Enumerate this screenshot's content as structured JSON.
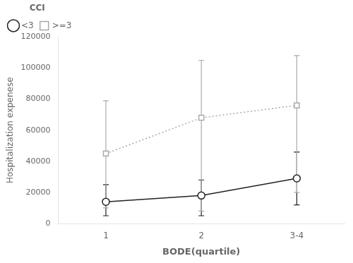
{
  "chart_data": {
    "type": "line",
    "xlabel": "BODE(quartile)",
    "ylabel": "Hospitalization expenese",
    "categories": [
      "1",
      "2",
      "3-4"
    ],
    "series": [
      {
        "name": "<3",
        "color": "#222222",
        "marker": "circle",
        "line_style": "solid",
        "values": [
          14000,
          18000,
          29000
        ],
        "err_low": [
          9000,
          13000,
          17000
        ],
        "err_high": [
          11000,
          10000,
          17000
        ]
      },
      {
        "name": ">=3",
        "color": "#aaaaaa",
        "marker": "square",
        "line_style": "dotted",
        "values": [
          45000,
          68000,
          76000
        ],
        "err_low": [
          35000,
          60000,
          56000
        ],
        "err_high": [
          34000,
          37000,
          32000
        ]
      }
    ],
    "ylim": [
      0,
      120000
    ],
    "yticks": [
      0,
      20000,
      40000,
      60000,
      80000,
      100000,
      120000
    ],
    "legend": "upper left",
    "legend_title": "CCI",
    "grid": false
  }
}
